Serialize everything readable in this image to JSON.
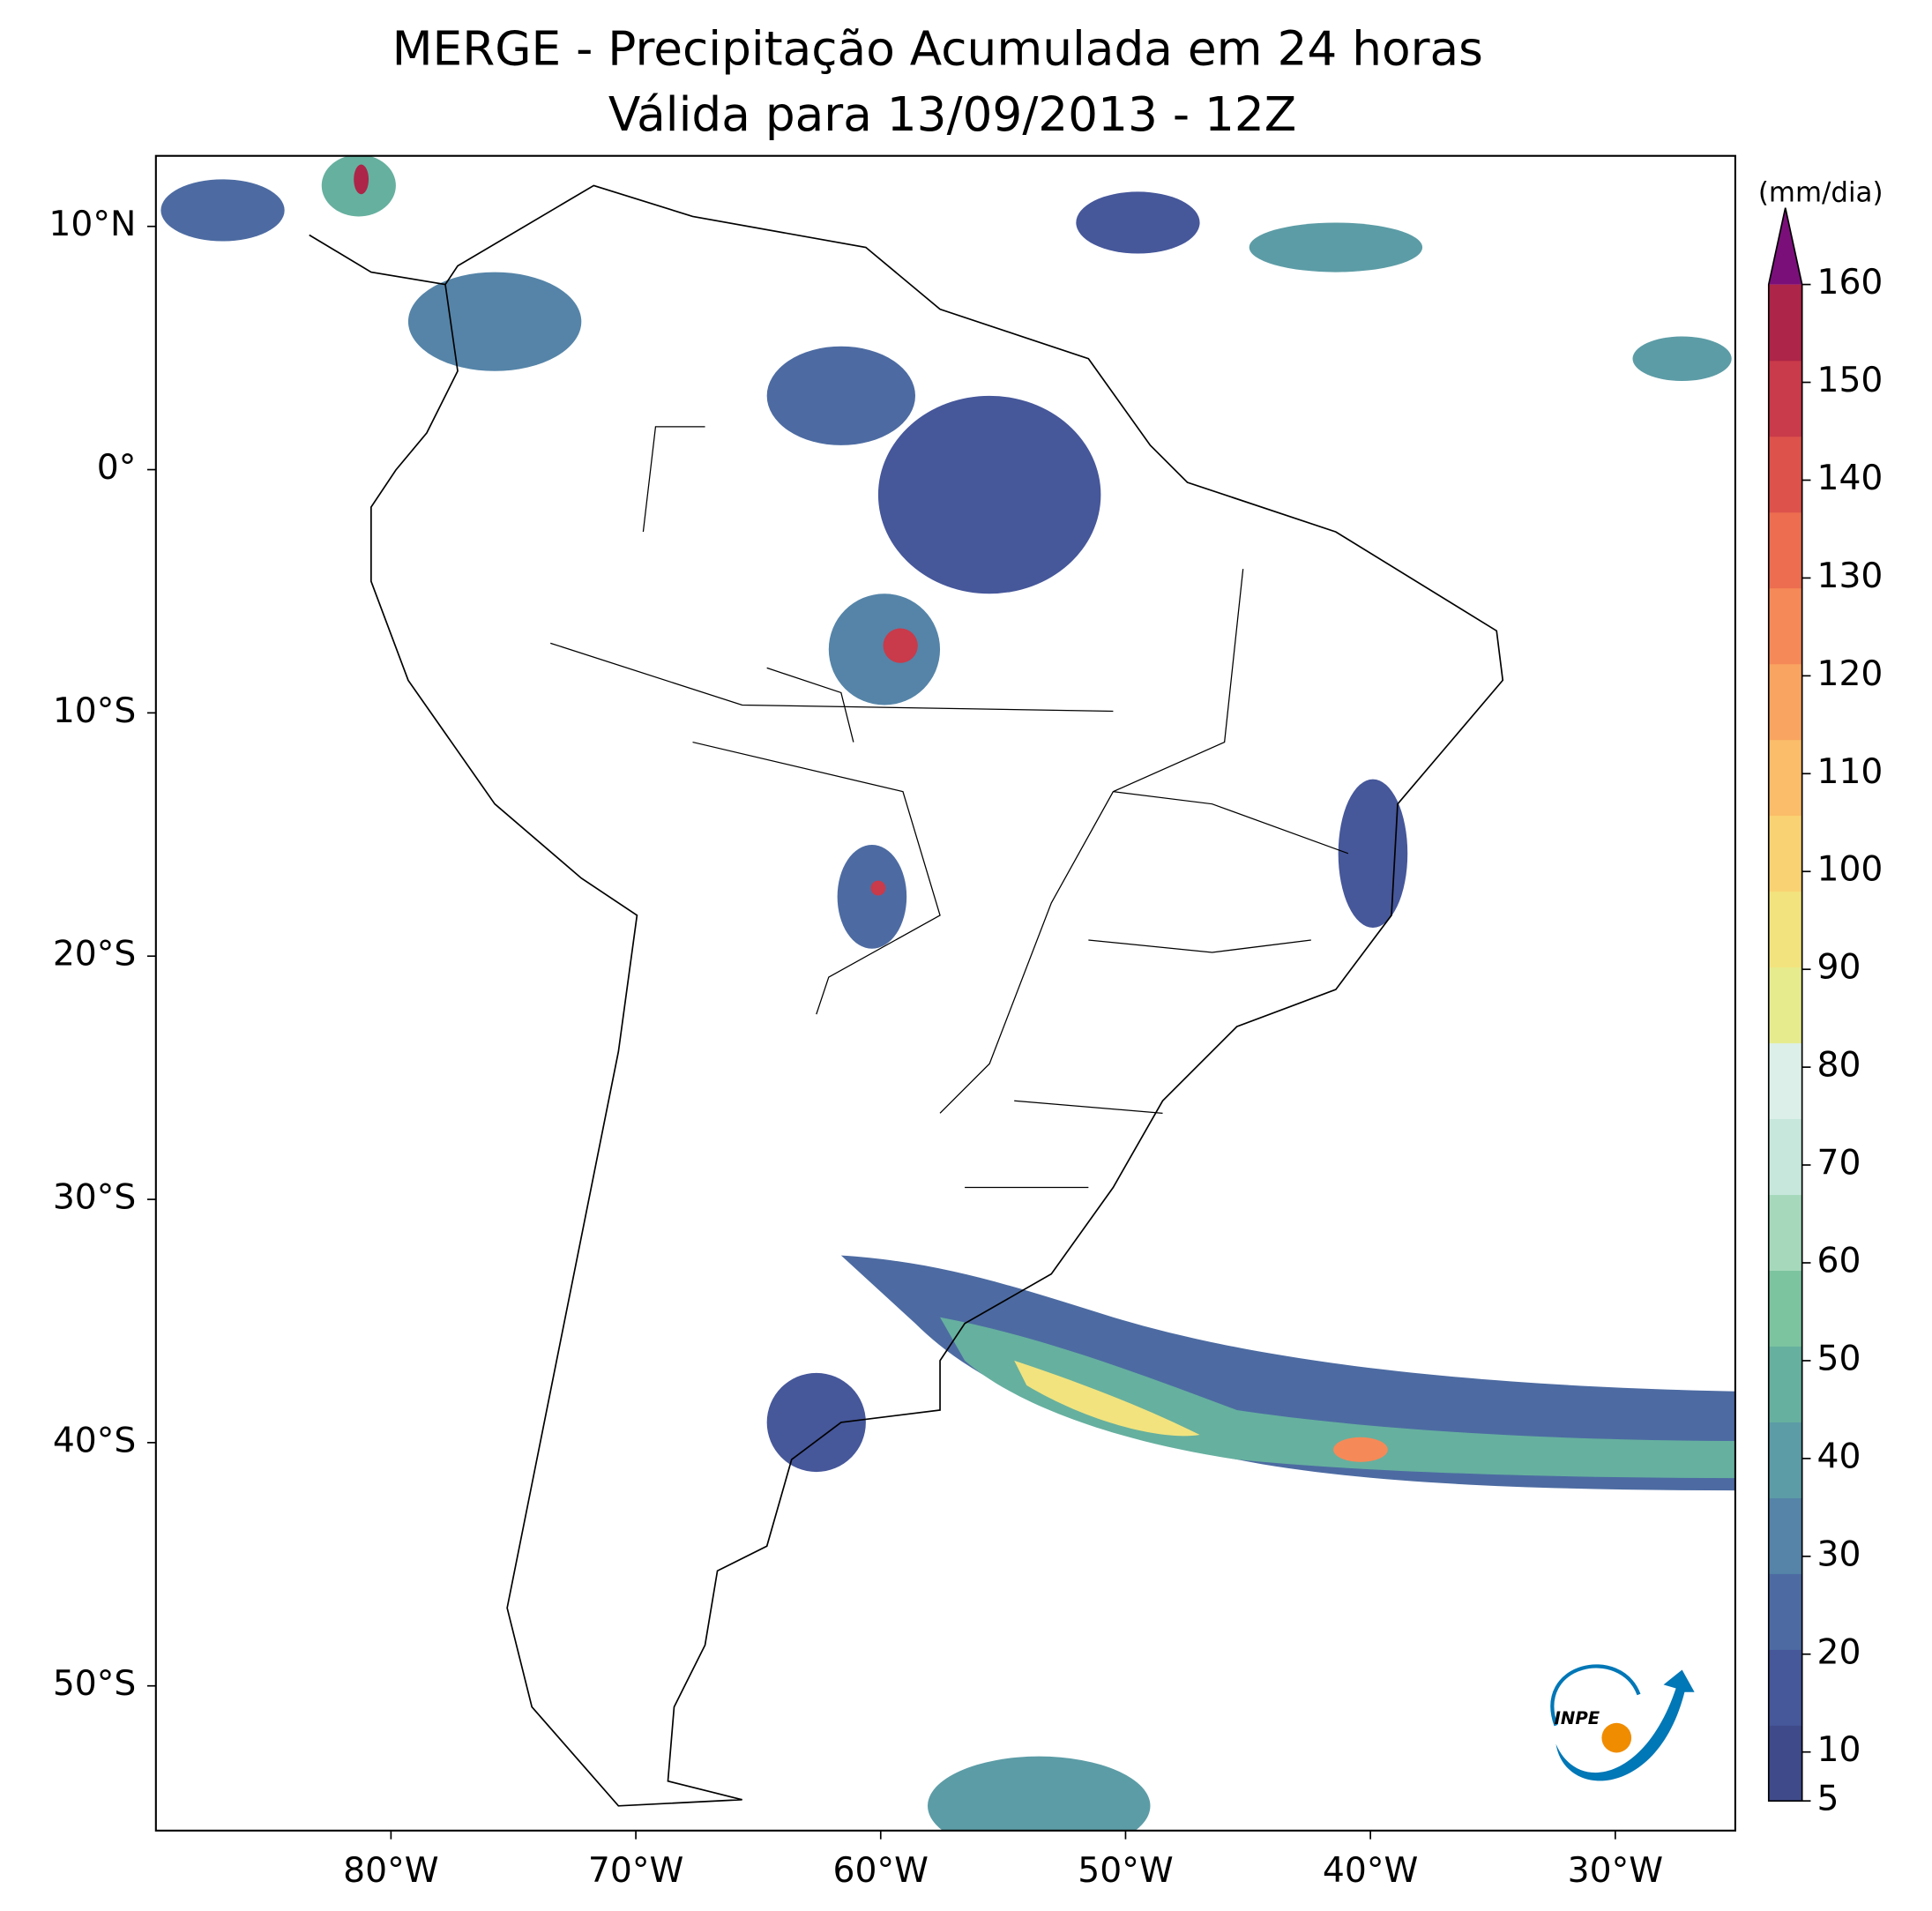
{
  "chart_data": {
    "type": "map",
    "title": "MERGE - Precipitação Acumulada em 24 horas",
    "subtitle": "Válida para 13/09/2013 - 12Z",
    "xlim": [
      -89.6,
      -25.1
    ],
    "ylim": [
      -55.95,
      12.9
    ],
    "xticks": [
      {
        "value": -80,
        "label": "80°W"
      },
      {
        "value": -70,
        "label": "70°W"
      },
      {
        "value": -60,
        "label": "60°W"
      },
      {
        "value": -50,
        "label": "50°W"
      },
      {
        "value": -40,
        "label": "40°W"
      },
      {
        "value": -30,
        "label": "30°W"
      }
    ],
    "yticks": [
      {
        "value": 10,
        "label": "10°N"
      },
      {
        "value": 0,
        "label": "0°"
      },
      {
        "value": -10,
        "label": "10°S"
      },
      {
        "value": -20,
        "label": "20°S"
      },
      {
        "value": -30,
        "label": "30°S"
      },
      {
        "value": -40,
        "label": "40°S"
      },
      {
        "value": -50,
        "label": "50°S"
      }
    ],
    "colorbar": {
      "label": "(mm/dia)",
      "clim": [
        5,
        160
      ],
      "ticks": [
        5,
        10,
        20,
        30,
        40,
        50,
        60,
        70,
        80,
        90,
        100,
        110,
        120,
        130,
        140,
        150,
        160
      ],
      "colors": [
        "#3f4a8a",
        "#46579a",
        "#4d6ba2",
        "#5584a8",
        "#5c9ca6",
        "#66b09f",
        "#7cc4a0",
        "#a6d9bb",
        "#c7e7dc",
        "#dcefe8",
        "#e6ec8e",
        "#f2e37e",
        "#f9d373",
        "#fbbd69",
        "#f9a460",
        "#f68958",
        "#ec6d50",
        "#dd524b",
        "#c93a4a",
        "#ad2548"
      ],
      "extend_color": "#7b0f7a"
    },
    "logo": "INPE"
  }
}
